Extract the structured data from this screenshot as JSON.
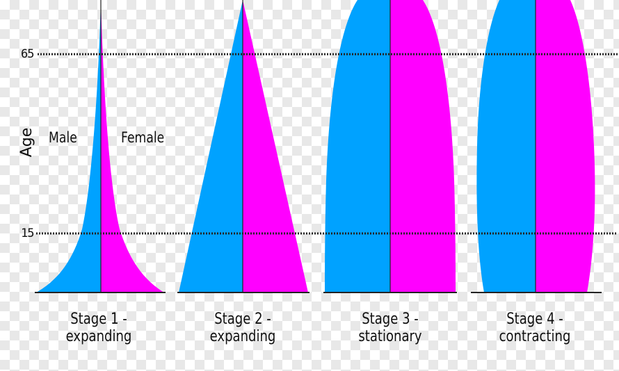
{
  "axis": {
    "label": "Age",
    "tick_upper": "65",
    "tick_lower": "15"
  },
  "legend": {
    "male": "Male",
    "female": "Female"
  },
  "colors": {
    "male": "#00a2ff",
    "female": "#ff00ff",
    "line": "#222222"
  },
  "stages": [
    {
      "label": "Stage 1 - expanding"
    },
    {
      "label": "Stage 2 - expanding"
    },
    {
      "label": "Stage 3 - stationary"
    },
    {
      "label": "Stage 4 - contracting"
    }
  ]
}
